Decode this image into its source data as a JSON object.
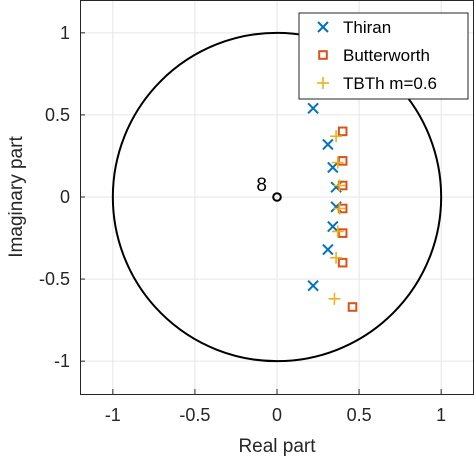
{
  "chart_data": {
    "type": "scatter",
    "title": "",
    "xlabel": "Real part",
    "ylabel": "Imaginary part",
    "xlim": [
      -1.2,
      1.2
    ],
    "ylim": [
      -1.2,
      1.2
    ],
    "xticks": [
      -1,
      -0.5,
      0,
      0.5,
      1
    ],
    "yticks": [
      -1,
      -0.5,
      0,
      0.5,
      1
    ],
    "xtick_labels": [
      "-1",
      "-0.5",
      "0",
      "0.5",
      "1"
    ],
    "ytick_labels": [
      "-1",
      "-0.5",
      "0",
      "0.5",
      "1"
    ],
    "grid": true,
    "unit_circle": true,
    "legend_position": "top-right",
    "annotations": [
      {
        "text": "8",
        "x": 0,
        "y": 0,
        "marker": "circle",
        "color": "#000000"
      }
    ],
    "series": [
      {
        "name": "Thiran",
        "marker": "x",
        "color": "#0072BD",
        "points": [
          [
            0.22,
            0.54
          ],
          [
            0.31,
            0.32
          ],
          [
            0.34,
            0.18
          ],
          [
            0.36,
            0.06
          ],
          [
            0.36,
            -0.06
          ],
          [
            0.34,
            -0.18
          ],
          [
            0.31,
            -0.32
          ],
          [
            0.22,
            -0.54
          ]
        ]
      },
      {
        "name": "Butterworth",
        "marker": "square",
        "color": "#D95319",
        "points": [
          [
            0.4,
            0.4
          ],
          [
            0.4,
            0.22
          ],
          [
            0.4,
            0.07
          ],
          [
            0.4,
            -0.07
          ],
          [
            0.4,
            -0.22
          ],
          [
            0.4,
            -0.4
          ],
          [
            0.46,
            -0.67
          ]
        ]
      },
      {
        "name": "TBTh m=0.6",
        "marker": "plus",
        "color": "#EDB120",
        "points": [
          [
            0.36,
            0.37
          ],
          [
            0.37,
            0.21
          ],
          [
            0.38,
            0.07
          ],
          [
            0.38,
            -0.07
          ],
          [
            0.37,
            -0.21
          ],
          [
            0.36,
            -0.37
          ],
          [
            0.35,
            -0.62
          ]
        ]
      }
    ]
  }
}
